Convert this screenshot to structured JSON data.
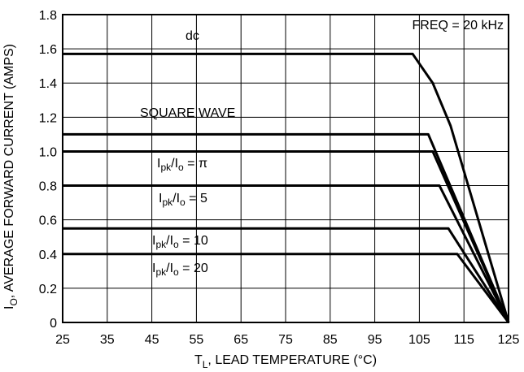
{
  "chart_data": {
    "type": "line",
    "xlabel_main": "T",
    "xlabel_sub": "L",
    "xlabel_rest": ", LEAD TEMPERATURE (°C)",
    "ylabel_main": "I",
    "ylabel_sub": "O",
    "ylabel_rest": ", AVERAGE FORWARD CURRENT (AMPS)",
    "xlim": [
      25,
      125
    ],
    "ylim": [
      0,
      1.8
    ],
    "x_ticks": [
      "25",
      "35",
      "45",
      "55",
      "65",
      "75",
      "85",
      "95",
      "105",
      "115",
      "125"
    ],
    "y_ticks": [
      "0",
      "0.2",
      "0.4",
      "0.6",
      "0.8",
      "1.0",
      "1.2",
      "1.4",
      "1.6",
      "1.8"
    ],
    "grid": true,
    "annotation": "FREQ = 20 kHz",
    "series": [
      {
        "name": "dc",
        "points": [
          [
            25,
            1.57
          ],
          [
            103.5,
            1.57
          ],
          [
            108,
            1.4
          ],
          [
            112,
            1.15
          ],
          [
            125,
            0
          ]
        ]
      },
      {
        "name": "SQUARE WAVE",
        "points": [
          [
            25,
            1.1
          ],
          [
            107,
            1.1
          ],
          [
            125,
            0
          ]
        ]
      },
      {
        "name_parts": [
          "I",
          "pk",
          "/I",
          "o",
          " = π"
        ],
        "points": [
          [
            25,
            1.0
          ],
          [
            108,
            1.0
          ],
          [
            125,
            0
          ]
        ]
      },
      {
        "name_parts": [
          "I",
          "pk",
          "/I",
          "o",
          " = 5"
        ],
        "points": [
          [
            25,
            0.8
          ],
          [
            109.5,
            0.8
          ],
          [
            125,
            0
          ]
        ]
      },
      {
        "name_parts": [
          "I",
          "pk",
          "/I",
          "o",
          " = 10"
        ],
        "points": [
          [
            25,
            0.55
          ],
          [
            111.5,
            0.55
          ],
          [
            125,
            0
          ]
        ]
      },
      {
        "name_parts": [
          "I",
          "pk",
          "/I",
          "o",
          " = 20"
        ],
        "points": [
          [
            25,
            0.4
          ],
          [
            113.5,
            0.4
          ],
          [
            125,
            0
          ]
        ]
      }
    ]
  }
}
